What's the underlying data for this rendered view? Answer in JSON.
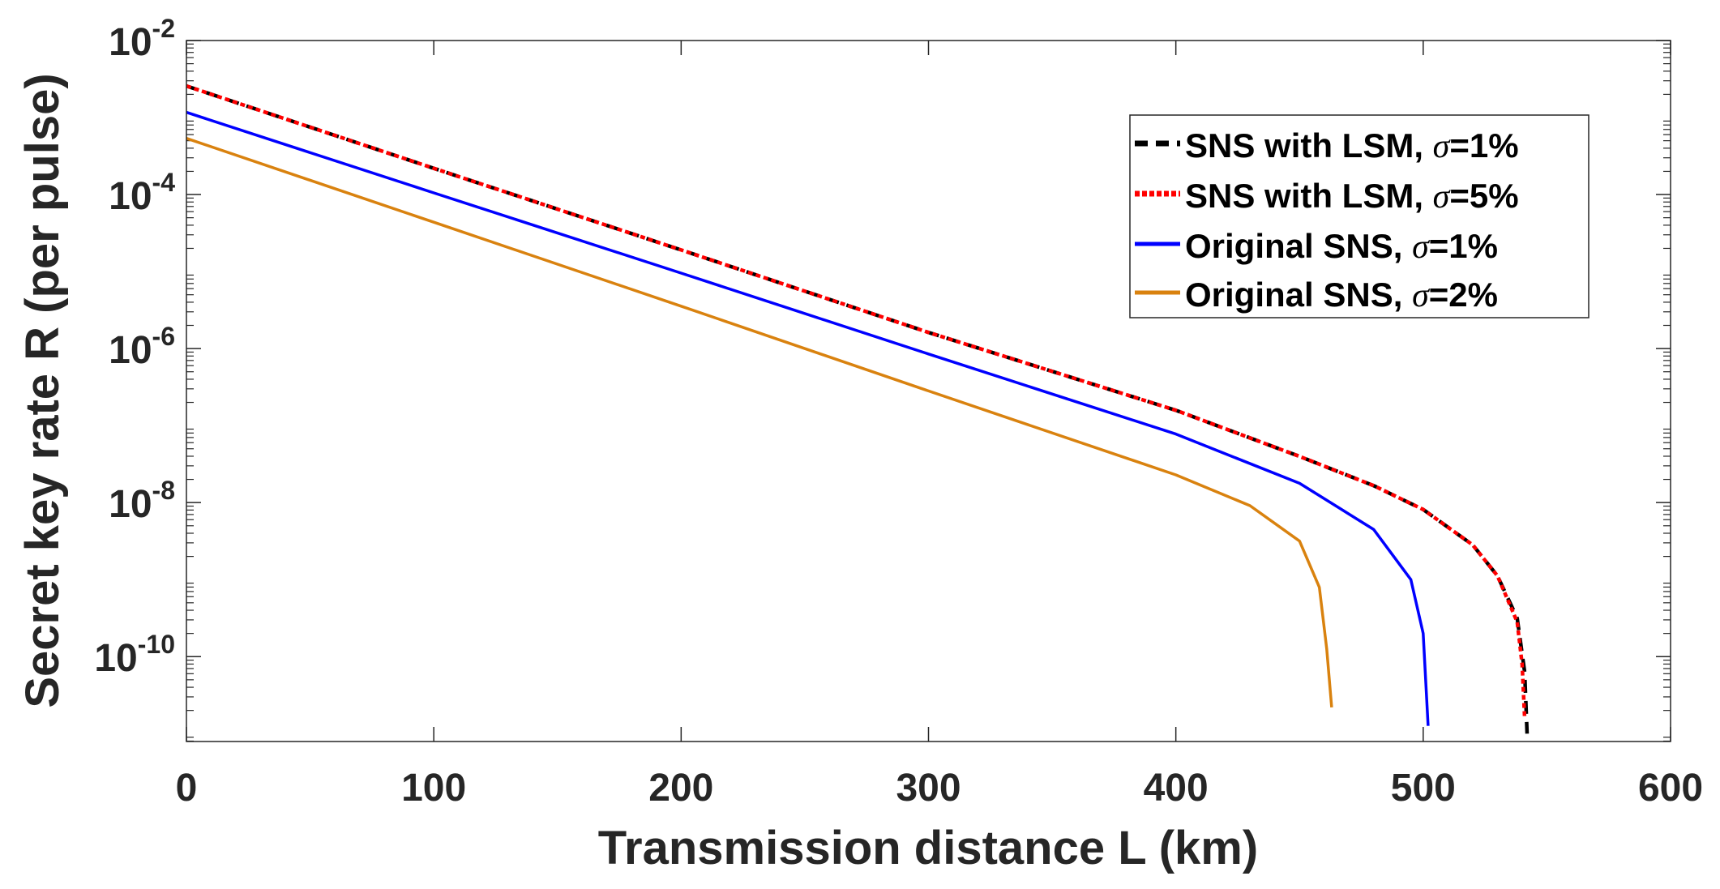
{
  "chart_data": {
    "type": "line",
    "title": "",
    "xlabel": "Transmission distance L (km)",
    "ylabel": "Secret key rate R (per pulse)",
    "xlim": [
      0,
      600
    ],
    "ylim": [
      7.9e-12,
      0.01
    ],
    "yscale": "log",
    "grid": false,
    "legend_placement": "top-right",
    "x_ticks": [
      0,
      100,
      200,
      300,
      400,
      500,
      600
    ],
    "x_tick_labels": [
      "0",
      "100",
      "200",
      "300",
      "400",
      "500",
      "600"
    ],
    "y_ticks": [
      1e-10,
      1e-08,
      1e-06,
      0.0001,
      0.01
    ],
    "y_tick_labels": [
      {
        "base": "10",
        "exp": "-10"
      },
      {
        "base": "10",
        "exp": "-8"
      },
      {
        "base": "10",
        "exp": "-6"
      },
      {
        "base": "10",
        "exp": "-4"
      },
      {
        "base": "10",
        "exp": "-2"
      }
    ],
    "series": [
      {
        "name": "SNS with LSM, σ=1%",
        "label_main": "SNS with LSM, ",
        "label_sigma": "σ",
        "label_value": "=1%",
        "color": "#000000",
        "style": "dashed",
        "x": [
          0,
          100,
          200,
          300,
          400,
          450,
          480,
          500,
          520,
          530,
          538,
          541,
          542
        ],
        "y": [
          0.00257,
          0.000219,
          1.91e-05,
          1.62e-06,
          1.58e-07,
          3.98e-08,
          1.66e-08,
          8.13e-09,
          2.82e-09,
          1.12e-09,
          3.16e-10,
          6.31e-11,
          1e-11
        ]
      },
      {
        "name": "SNS with LSM, σ=5%",
        "label_main": "SNS with LSM, ",
        "label_sigma": "σ",
        "label_value": "=5%",
        "color": "#ff0000",
        "style": "dotted",
        "x": [
          0,
          100,
          200,
          300,
          400,
          450,
          480,
          500,
          520,
          530,
          538,
          540,
          541
        ],
        "y": [
          0.00257,
          0.000219,
          1.91e-05,
          1.62e-06,
          1.58e-07,
          3.98e-08,
          1.66e-08,
          8.13e-09,
          2.82e-09,
          1.12e-09,
          2.82e-10,
          7.94e-11,
          1.58e-11
        ]
      },
      {
        "name": "Original SNS, σ=1%",
        "label_main": "Original SNS, ",
        "label_sigma": "σ",
        "label_value": "=1%",
        "color": "#0000ff",
        "style": "solid",
        "x": [
          0,
          100,
          200,
          300,
          400,
          450,
          480,
          495,
          500,
          502
        ],
        "y": [
          0.00117,
          0.000105,
          9.55e-06,
          8.51e-07,
          7.76e-08,
          1.78e-08,
          4.47e-09,
          1e-09,
          2e-10,
          1.26e-11
        ]
      },
      {
        "name": "Original SNS, σ=2%",
        "label_main": "Original SNS, ",
        "label_sigma": "σ",
        "label_value": "=2%",
        "color": "#d9820f",
        "style": "solid",
        "x": [
          0,
          100,
          200,
          300,
          400,
          430,
          450,
          458,
          461,
          463
        ],
        "y": [
          0.000537,
          4.37e-05,
          3.55e-06,
          2.82e-07,
          2.29e-08,
          9.12e-09,
          3.16e-09,
          7.94e-10,
          1.26e-10,
          2.19e-11
        ]
      }
    ]
  }
}
